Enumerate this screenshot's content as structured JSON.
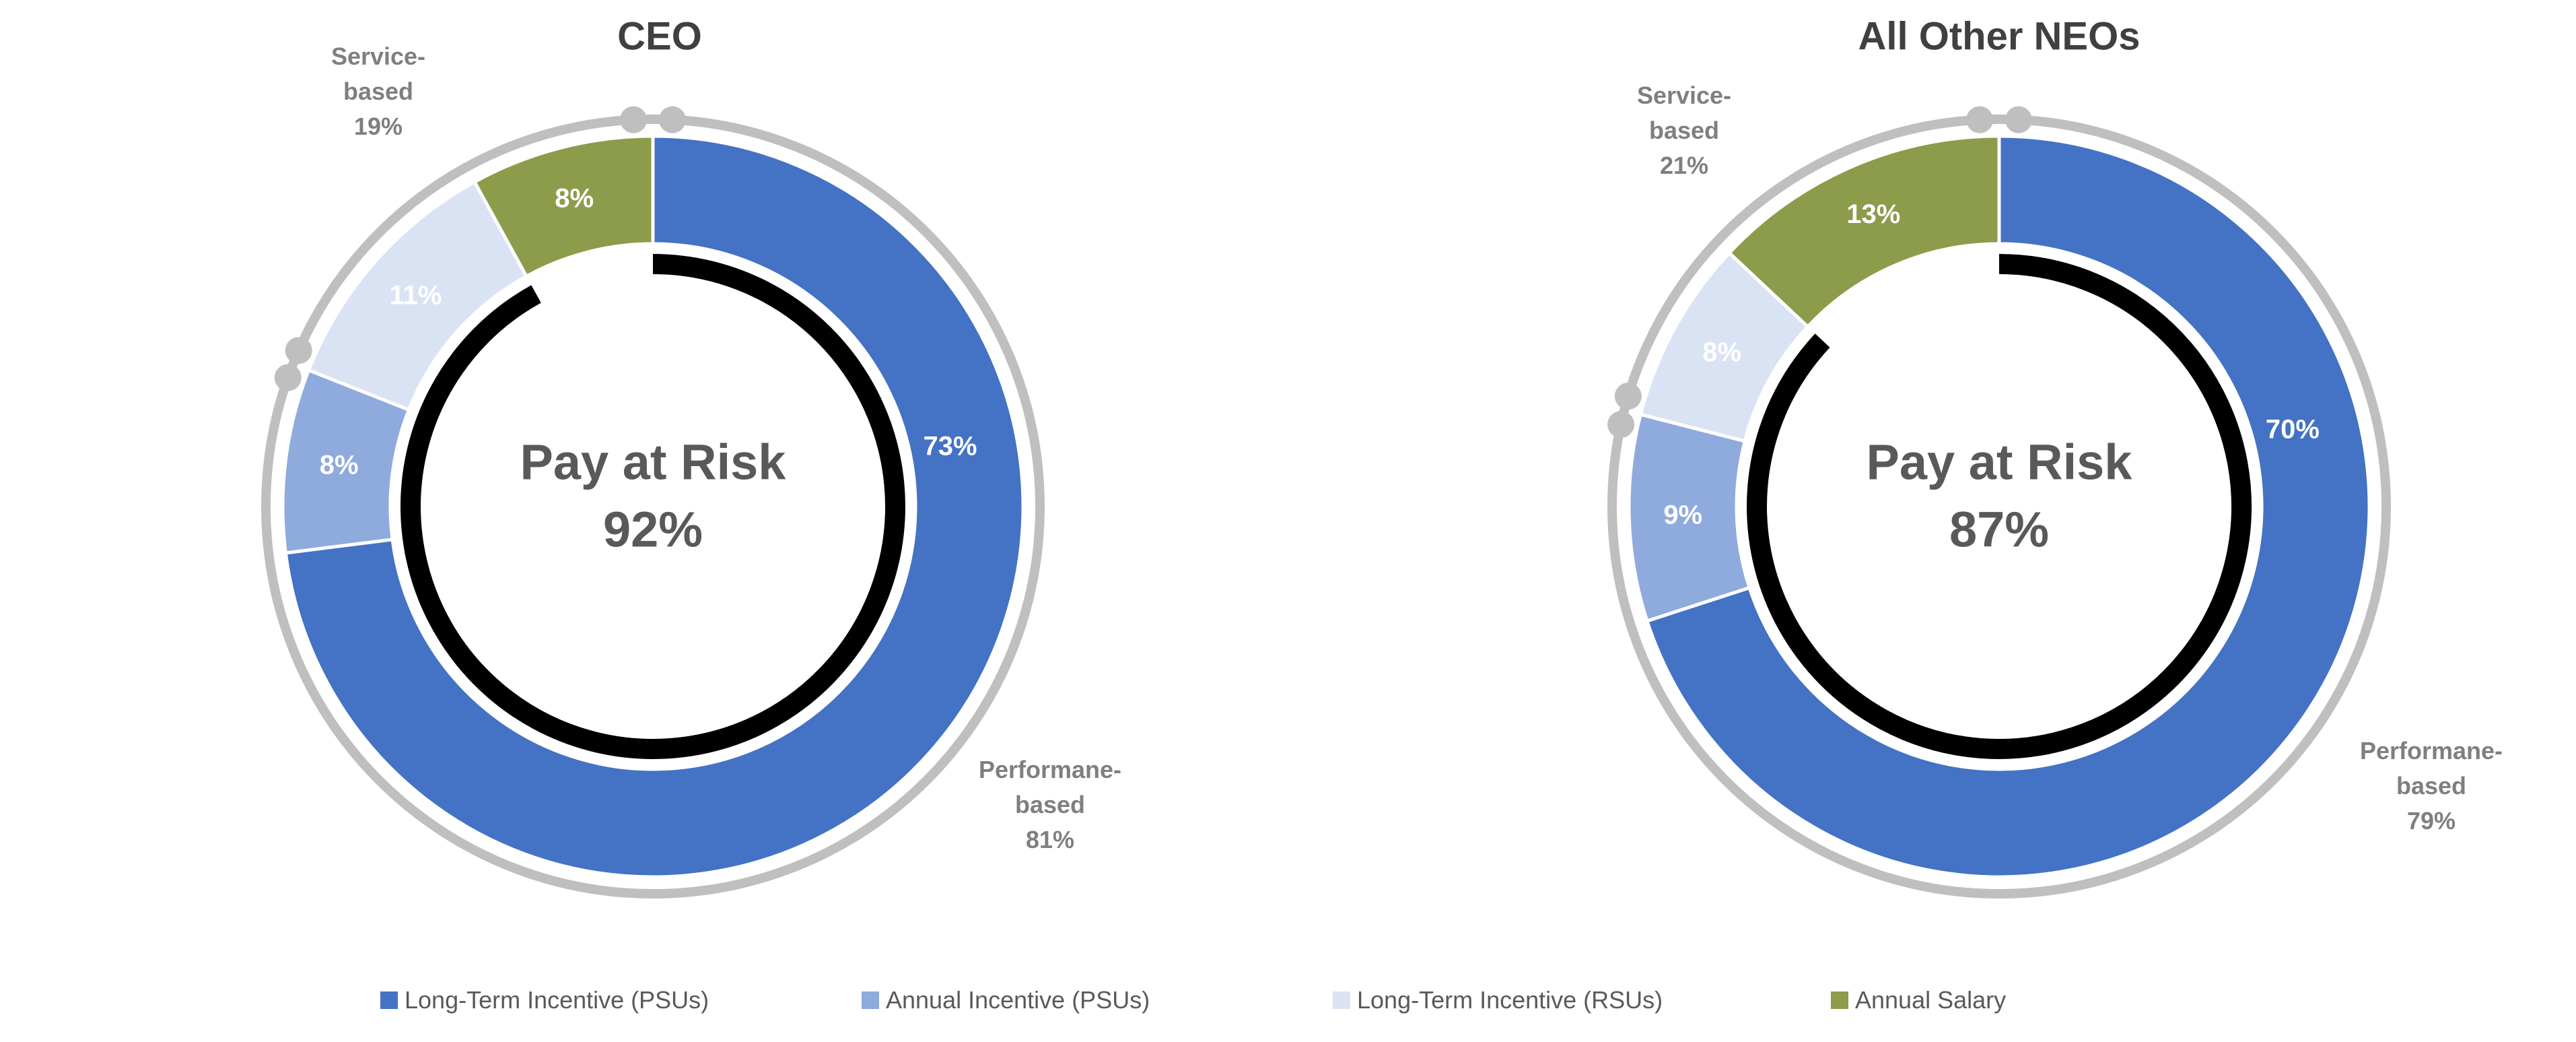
{
  "chart_data": [
    {
      "type": "pie",
      "title": "CEO",
      "center_label": {
        "line1": "Pay at Risk",
        "line2": "92%"
      },
      "slices": [
        {
          "name": "Long-Term Incentive (PSUs)",
          "value": 73,
          "label": "73%"
        },
        {
          "name": "Annual Incentive (PSUs)",
          "value": 8,
          "label": "8%"
        },
        {
          "name": "Long-Term Incentive (RSUs)",
          "value": 11,
          "label": "11%"
        },
        {
          "name": "Annual Salary",
          "value": 8,
          "label": "8%"
        }
      ],
      "groups": [
        {
          "lines": [
            "Performane-",
            "based",
            "81%"
          ],
          "value": 81
        },
        {
          "lines": [
            "Service-",
            "based",
            "19%"
          ],
          "value": 19
        }
      ],
      "pay_at_risk": 92
    },
    {
      "type": "pie",
      "title": "All Other NEOs",
      "center_label": {
        "line1": "Pay at Risk",
        "line2": "87%"
      },
      "slices": [
        {
          "name": "Long-Term Incentive (PSUs)",
          "value": 70,
          "label": "70%"
        },
        {
          "name": "Annual Incentive (PSUs)",
          "value": 9,
          "label": "9%"
        },
        {
          "name": "Long-Term Incentive (RSUs)",
          "value": 8,
          "label": "8%"
        },
        {
          "name": "Annual Salary",
          "value": 13,
          "label": "13%"
        }
      ],
      "groups": [
        {
          "lines": [
            "Performane-",
            "based",
            "79%"
          ],
          "value": 79
        },
        {
          "lines": [
            "Service-",
            "based",
            "21%"
          ],
          "value": 21
        }
      ],
      "pay_at_risk": 87
    }
  ],
  "legend": {
    "position": "bottom",
    "items": [
      {
        "label": "Long-Term Incentive (PSUs)",
        "color": "#4472c4"
      },
      {
        "label": "Annual Incentive (PSUs)",
        "color": "#8faadc"
      },
      {
        "label": "Long-Term Incentive (RSUs)",
        "color": "#dae3f3"
      },
      {
        "label": "Annual Salary",
        "color": "#8c9c4a"
      }
    ]
  },
  "colors": {
    "slices": [
      "#4472c4",
      "#8faadc",
      "#dae3f3",
      "#8c9c4a"
    ],
    "slice_label_text": [
      "#ffffff",
      "#ffffff",
      "#ffffff",
      "#ffffff"
    ],
    "outer_ring": "#bfbfbf",
    "risk_ring": "#000000",
    "group_label": "#7f7f7f",
    "center_label": "#595959",
    "title": "#404040"
  }
}
